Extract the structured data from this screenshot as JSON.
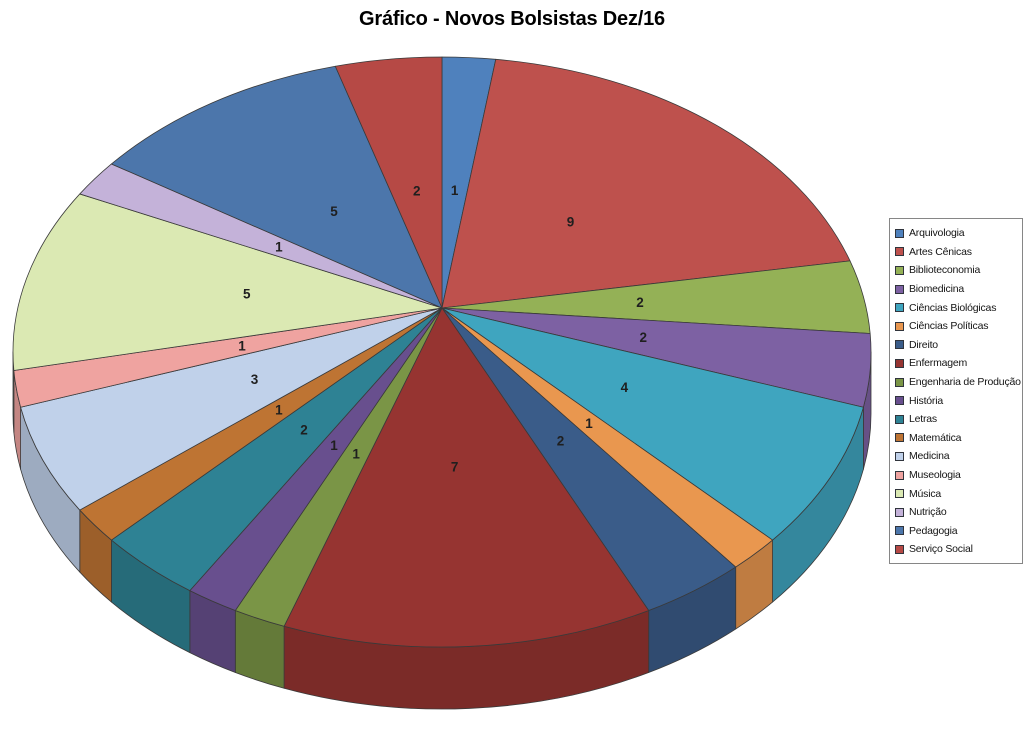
{
  "title": "Gráfico - Novos Bolsistas Dez/16",
  "chart_data": {
    "type": "pie",
    "style": "3d-pie",
    "title": "Gráfico - Novos Bolsistas Dez/16",
    "legend_position": "right",
    "data_labels": "values",
    "total": 50,
    "categories": [
      "Arquivologia",
      "Artes Cênicas",
      "Biblioteconomia",
      "Biomedicina",
      "Ciências Biológicas",
      "Ciências Políticas",
      "Direito",
      "Enfermagem",
      "Engenharia de Produção",
      "História",
      "Letras",
      "Matemática",
      "Medicina",
      "Museologia",
      "Música",
      "Nutrição",
      "Pedagogia",
      "Serviço Social"
    ],
    "values": [
      1,
      9,
      2,
      2,
      4,
      1,
      2,
      7,
      1,
      1,
      2,
      1,
      3,
      1,
      5,
      1,
      5,
      2
    ],
    "colors": [
      "#4F81BD",
      "#BE514D",
      "#94B156",
      "#7D61A3",
      "#3FA5BF",
      "#E9974F",
      "#3A5C89",
      "#963431",
      "#7A9546",
      "#684F8E",
      "#2E8294",
      "#BE7433",
      "#C0D1EA",
      "#EFA3A0",
      "#DBE9B3",
      "#C4B2D9",
      "#4C76AB",
      "#B64945"
    ],
    "label_color": "#1F1F1F",
    "background_color": "#FFFFFF",
    "legend_border_color": "#868686"
  }
}
